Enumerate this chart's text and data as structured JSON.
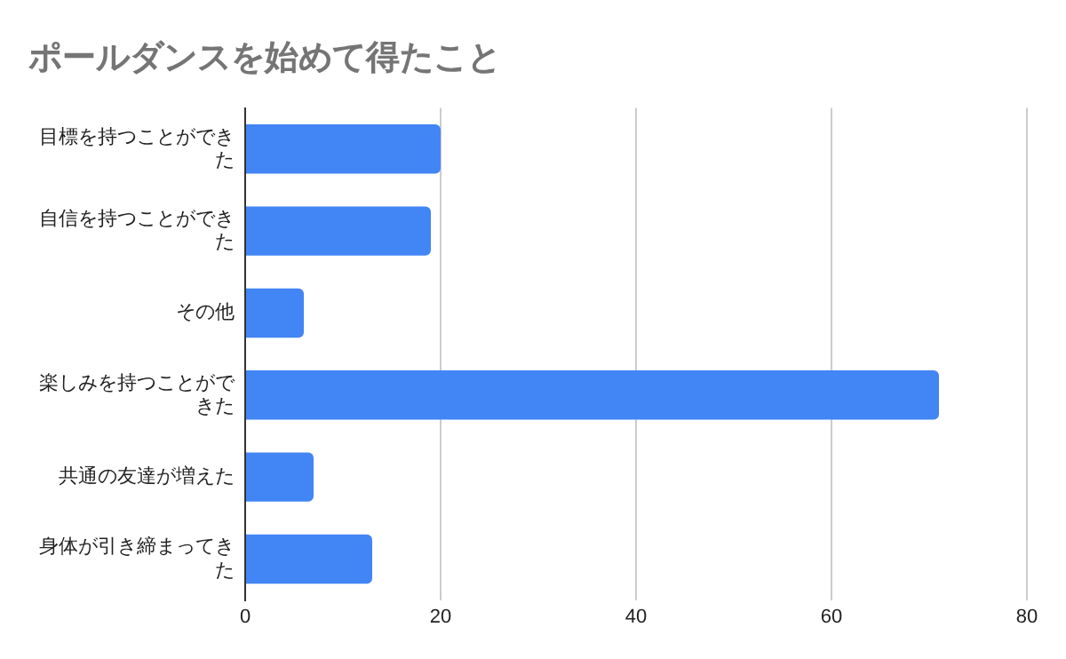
{
  "chart_data": {
    "type": "bar",
    "orientation": "horizontal",
    "title": "ポールダンスを始めて得たこと",
    "categories": [
      "目標を持つことができた",
      "自信を持つことができた",
      "その他",
      "楽しみを持つことができた",
      "共通の友達が増えた",
      "身体が引き締まってきた"
    ],
    "values": [
      20,
      19,
      6,
      71,
      7,
      13
    ],
    "color": "#4285f4",
    "xlim": [
      0,
      80
    ],
    "xticks": [
      0,
      20,
      40,
      60,
      80
    ],
    "grid": "x",
    "legend": false
  }
}
